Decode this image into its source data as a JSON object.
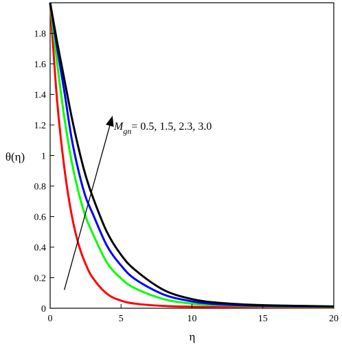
{
  "chart_data": {
    "type": "line",
    "title": "",
    "xlabel": "η",
    "ylabel": "θ(η)",
    "xlim": [
      0,
      20
    ],
    "ylim": [
      0,
      2
    ],
    "x_ticks": [
      0,
      5,
      10,
      15,
      20
    ],
    "y_ticks": [
      0,
      0.2,
      0.4,
      0.6,
      0.8,
      1,
      1.2,
      1.4,
      1.6,
      1.8
    ],
    "x_tick_labels": [
      "0",
      "5",
      "10",
      "15",
      "20"
    ],
    "y_tick_labels": [
      "0",
      "0.2",
      "0.4",
      "0.6",
      "0.8",
      "1",
      "1.2",
      "1.4",
      "1.6",
      "1.8"
    ],
    "grid": false,
    "series": [
      {
        "color": "#ff0000",
        "x": [
          0,
          0.5,
          1,
          1.5,
          2,
          2.5,
          3,
          4,
          5,
          6,
          8,
          10,
          12,
          15,
          20
        ],
        "y": [
          2.0,
          1.35,
          0.92,
          0.62,
          0.42,
          0.29,
          0.2,
          0.095,
          0.05,
          0.03,
          0.015,
          0.01,
          0.008,
          0.006,
          0.005
        ]
      },
      {
        "color": "#00ff00",
        "x": [
          0,
          0.5,
          1,
          1.5,
          2,
          2.5,
          3,
          4,
          5,
          6,
          8,
          10,
          12,
          15,
          20
        ],
        "y": [
          2.0,
          1.6,
          1.25,
          0.97,
          0.76,
          0.6,
          0.49,
          0.3,
          0.195,
          0.13,
          0.06,
          0.03,
          0.02,
          0.012,
          0.008
        ]
      },
      {
        "color": "#0000ff",
        "x": [
          0,
          0.5,
          1,
          1.5,
          2,
          2.5,
          3,
          4,
          5,
          6,
          8,
          10,
          12,
          15,
          20
        ],
        "y": [
          2.0,
          1.7,
          1.42,
          1.12,
          0.9,
          0.73,
          0.62,
          0.41,
          0.28,
          0.19,
          0.09,
          0.045,
          0.025,
          0.015,
          0.01
        ]
      },
      {
        "color": "#000000",
        "x": [
          0,
          0.5,
          1,
          1.5,
          2,
          2.5,
          3,
          4,
          5,
          6,
          8,
          10,
          12,
          15,
          20
        ],
        "y": [
          2.0,
          1.74,
          1.5,
          1.26,
          1.05,
          0.87,
          0.73,
          0.5,
          0.35,
          0.25,
          0.12,
          0.06,
          0.035,
          0.02,
          0.012
        ]
      }
    ],
    "annotation": {
      "text_main": "M",
      "text_sub": "gn",
      "text_rest": "= 0.5, 1.5, 2.3, 3.0",
      "arrow_from": [
        1,
        0.12
      ],
      "arrow_to": [
        4.4,
        1.26
      ]
    },
    "colors": {
      "axis": "#000000"
    }
  }
}
